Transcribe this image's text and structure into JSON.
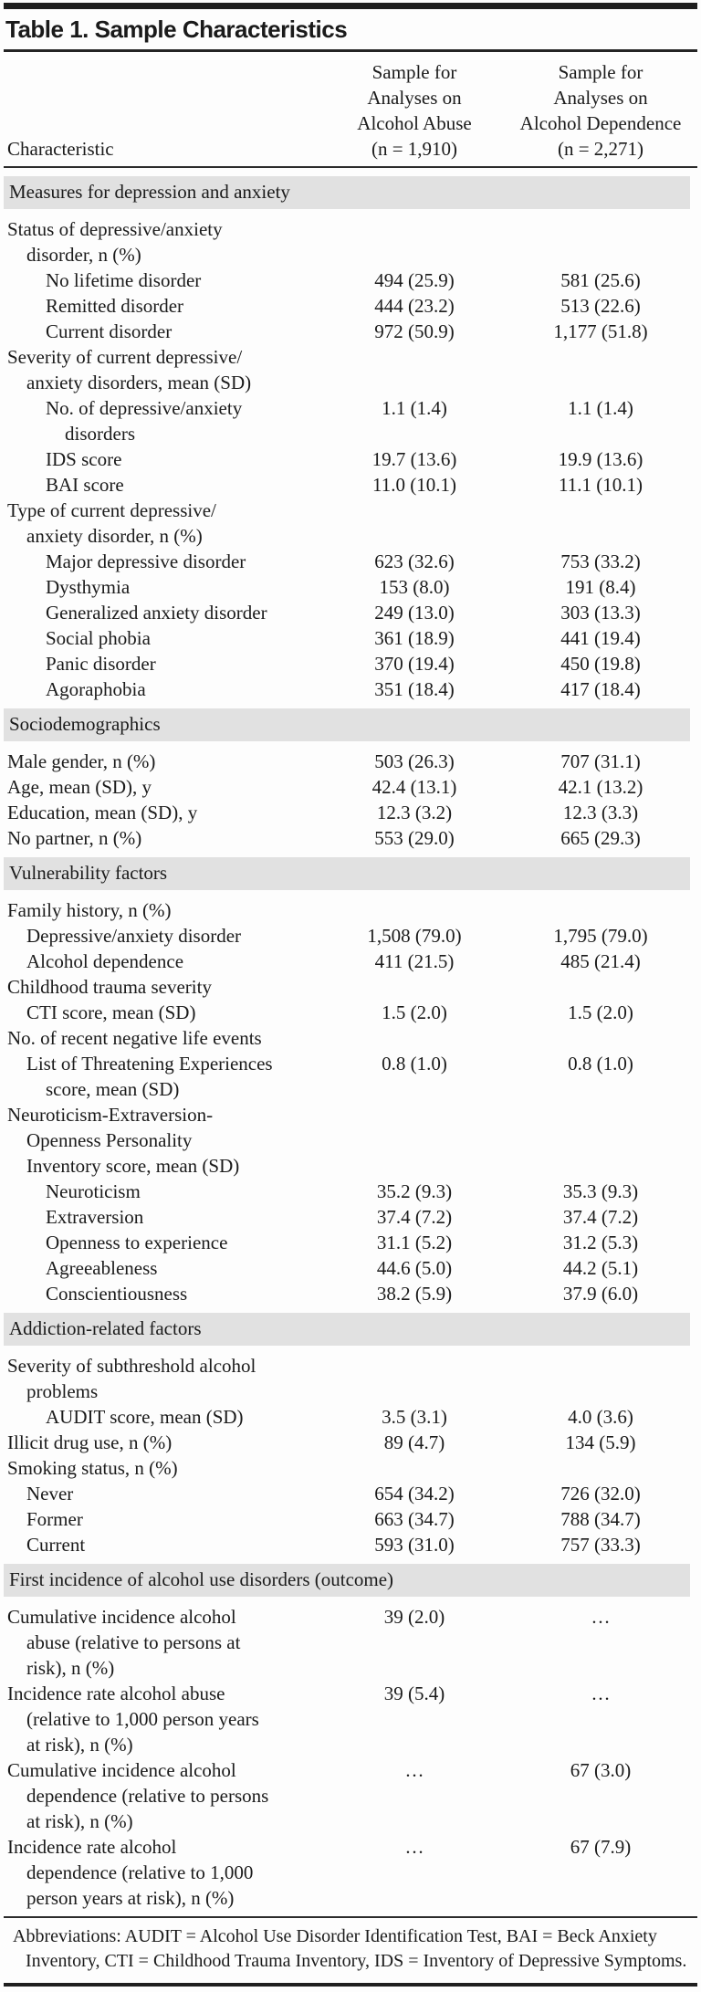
{
  "title": "Table 1. Sample Characteristics",
  "header": {
    "characteristic_label": "Characteristic",
    "col1": "Sample for\nAnalyses on\nAlcohol Abuse\n(n = 1,910)",
    "col2": "Sample for\nAnalyses on\nAlcohol Dependence\n(n = 2,271)"
  },
  "rows": [
    {
      "type": "section",
      "label": "Measures for depression and anxiety"
    },
    {
      "type": "row",
      "indent": 0,
      "label": "Status of depressive/anxiety\ndisorder, n (%)",
      "v1": "",
      "v2": ""
    },
    {
      "type": "row",
      "indent": 2,
      "label": "No lifetime disorder",
      "v1": "494 (25.9)",
      "v2": "581 (25.6)"
    },
    {
      "type": "row",
      "indent": 2,
      "label": "Remitted disorder",
      "v1": "444 (23.2)",
      "v2": "513 (22.6)"
    },
    {
      "type": "row",
      "indent": 2,
      "label": "Current disorder",
      "v1": "972 (50.9)",
      "v2": "1,177 (51.8)"
    },
    {
      "type": "row",
      "indent": 0,
      "label": "Severity of current depressive/\nanxiety disorders, mean (SD)",
      "v1": "",
      "v2": ""
    },
    {
      "type": "row",
      "indent": 2,
      "label": "No. of depressive/anxiety\ndisorders",
      "v1": "1.1 (1.4)",
      "v2": "1.1 (1.4)"
    },
    {
      "type": "row",
      "indent": 2,
      "label": "IDS score",
      "v1": "19.7 (13.6)",
      "v2": "19.9 (13.6)"
    },
    {
      "type": "row",
      "indent": 2,
      "label": "BAI score",
      "v1": "11.0 (10.1)",
      "v2": "11.1 (10.1)"
    },
    {
      "type": "row",
      "indent": 0,
      "label": "Type of current depressive/\nanxiety disorder, n (%)",
      "v1": "",
      "v2": ""
    },
    {
      "type": "row",
      "indent": 2,
      "label": "Major depressive disorder",
      "v1": "623 (32.6)",
      "v2": "753 (33.2)"
    },
    {
      "type": "row",
      "indent": 2,
      "label": "Dysthymia",
      "v1": "153 (8.0)",
      "v2": "191 (8.4)"
    },
    {
      "type": "row",
      "indent": 2,
      "label": "Generalized anxiety disorder",
      "v1": "249 (13.0)",
      "v2": "303 (13.3)"
    },
    {
      "type": "row",
      "indent": 2,
      "label": "Social phobia",
      "v1": "361 (18.9)",
      "v2": "441 (19.4)"
    },
    {
      "type": "row",
      "indent": 2,
      "label": "Panic disorder",
      "v1": "370 (19.4)",
      "v2": "450 (19.8)"
    },
    {
      "type": "row",
      "indent": 2,
      "label": "Agoraphobia",
      "v1": "351 (18.4)",
      "v2": "417 (18.4)"
    },
    {
      "type": "section",
      "label": "Sociodemographics"
    },
    {
      "type": "row",
      "indent": 0,
      "label": "Male gender, n (%)",
      "v1": "503 (26.3)",
      "v2": "707 (31.1)"
    },
    {
      "type": "row",
      "indent": 0,
      "label": "Age, mean (SD), y",
      "v1": "42.4 (13.1)",
      "v2": "42.1 (13.2)"
    },
    {
      "type": "row",
      "indent": 0,
      "label": "Education, mean (SD), y",
      "v1": "12.3 (3.2)",
      "v2": "12.3 (3.3)"
    },
    {
      "type": "row",
      "indent": 0,
      "label": "No partner, n (%)",
      "v1": "553 (29.0)",
      "v2": "665 (29.3)"
    },
    {
      "type": "section",
      "label": "Vulnerability factors"
    },
    {
      "type": "row",
      "indent": 0,
      "label": "Family history, n (%)",
      "v1": "",
      "v2": ""
    },
    {
      "type": "row",
      "indent": 1,
      "label": "Depressive/anxiety disorder",
      "v1": "1,508 (79.0)",
      "v2": "1,795 (79.0)"
    },
    {
      "type": "row",
      "indent": 1,
      "label": "Alcohol dependence",
      "v1": "411 (21.5)",
      "v2": "485 (21.4)"
    },
    {
      "type": "row",
      "indent": 0,
      "label": "Childhood trauma severity",
      "v1": "",
      "v2": ""
    },
    {
      "type": "row",
      "indent": 1,
      "label": "CTI score, mean (SD)",
      "v1": "1.5 (2.0)",
      "v2": "1.5 (2.0)"
    },
    {
      "type": "row",
      "indent": 0,
      "label": "No. of recent negative life events",
      "v1": "",
      "v2": ""
    },
    {
      "type": "row",
      "indent": 1,
      "label": "List of Threatening Experiences\nscore, mean (SD)",
      "v1": "0.8 (1.0)",
      "v2": "0.8 (1.0)"
    },
    {
      "type": "row",
      "indent": 0,
      "label": "Neuroticism-Extraversion-\nOpenness Personality\nInventory score, mean (SD)",
      "v1": "",
      "v2": ""
    },
    {
      "type": "row",
      "indent": 2,
      "label": "Neuroticism",
      "v1": "35.2 (9.3)",
      "v2": "35.3 (9.3)"
    },
    {
      "type": "row",
      "indent": 2,
      "label": "Extraversion",
      "v1": "37.4 (7.2)",
      "v2": "37.4 (7.2)"
    },
    {
      "type": "row",
      "indent": 2,
      "label": "Openness to experience",
      "v1": "31.1 (5.2)",
      "v2": "31.2 (5.3)"
    },
    {
      "type": "row",
      "indent": 2,
      "label": "Agreeableness",
      "v1": "44.6 (5.0)",
      "v2": "44.2 (5.1)"
    },
    {
      "type": "row",
      "indent": 2,
      "label": "Conscientiousness",
      "v1": "38.2 (5.9)",
      "v2": "37.9 (6.0)"
    },
    {
      "type": "section",
      "label": "Addiction-related factors"
    },
    {
      "type": "row",
      "indent": 0,
      "label": "Severity of subthreshold alcohol\nproblems",
      "v1": "",
      "v2": ""
    },
    {
      "type": "row",
      "indent": 2,
      "label": "AUDIT score, mean (SD)",
      "v1": "3.5 (3.1)",
      "v2": "4.0 (3.6)"
    },
    {
      "type": "row",
      "indent": 0,
      "label": "Illicit drug use, n (%)",
      "v1": "89 (4.7)",
      "v2": "134 (5.9)"
    },
    {
      "type": "row",
      "indent": 0,
      "label": "Smoking status, n (%)",
      "v1": "",
      "v2": ""
    },
    {
      "type": "row",
      "indent": 1,
      "label": "Never",
      "v1": "654 (34.2)",
      "v2": "726 (32.0)"
    },
    {
      "type": "row",
      "indent": 1,
      "label": "Former",
      "v1": "663 (34.7)",
      "v2": "788 (34.7)"
    },
    {
      "type": "row",
      "indent": 1,
      "label": "Current",
      "v1": "593 (31.0)",
      "v2": "757 (33.3)"
    },
    {
      "type": "section",
      "label": "First incidence of alcohol use disorders (outcome)"
    },
    {
      "type": "row",
      "indent": 0,
      "label": "Cumulative incidence alcohol\nabuse (relative to persons at\nrisk), n (%)",
      "v1": "39 (2.0)",
      "v2": "…"
    },
    {
      "type": "row",
      "indent": 0,
      "label": "Incidence rate alcohol abuse\n(relative to 1,000 person years\nat risk), n (%)",
      "v1": "39 (5.4)",
      "v2": "…"
    },
    {
      "type": "row",
      "indent": 0,
      "label": "Cumulative incidence alcohol\ndependence (relative to persons\nat risk), n (%)",
      "v1": "…",
      "v2": "67 (3.0)"
    },
    {
      "type": "row",
      "indent": 0,
      "label": "Incidence rate alcohol\ndependence (relative to 1,000\nperson years at risk), n (%)",
      "v1": "…",
      "v2": "67 (7.9)"
    }
  ],
  "footnote": "Abbreviations: AUDIT = Alcohol Use Disorder Identification Test, BAI = Beck Anxiety Inventory, CTI = Childhood Trauma Inventory, IDS = Inventory of Depressive Symptoms.",
  "colors": {
    "section_band": "#e1e1e1",
    "rule": "#1f1f1f",
    "text": "#1b1b1b",
    "background": "#fdfdfd"
  }
}
